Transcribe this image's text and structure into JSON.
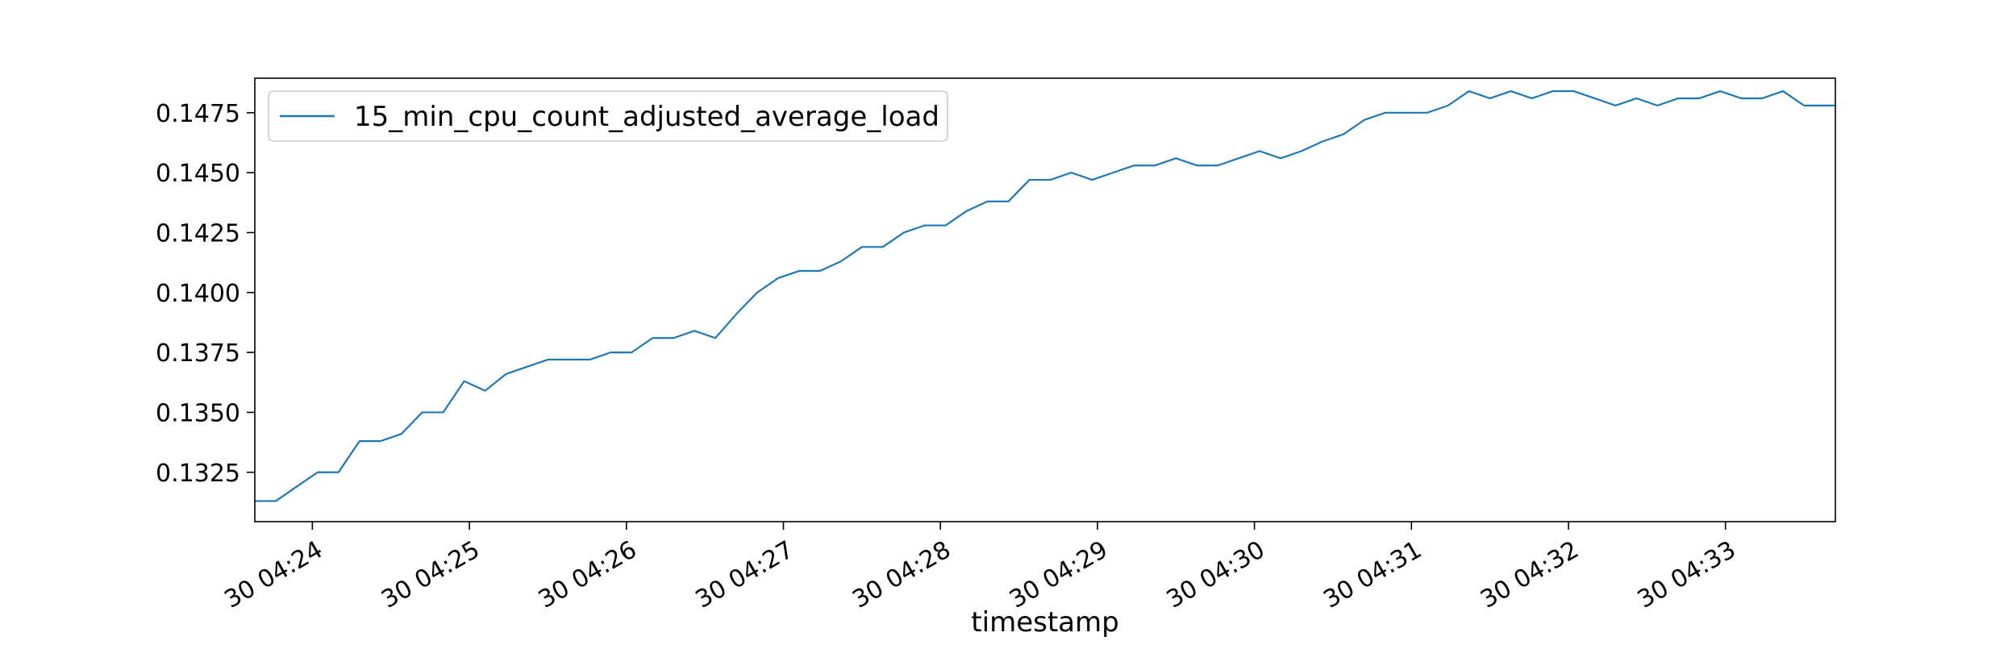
{
  "chart_data": {
    "type": "line",
    "title": "",
    "xlabel": "timestamp",
    "ylabel": "",
    "x_start": "30 04:23:38",
    "x_end": "30 04:33:42",
    "xlim": [
      "30 04:23:38",
      "30 04:33:42"
    ],
    "ylim": [
      0.13044,
      0.14894
    ],
    "y_ticks": [
      0.1325,
      0.135,
      0.1375,
      0.14,
      0.1425,
      0.145,
      0.1475
    ],
    "y_tick_labels": [
      "0.1325",
      "0.1350",
      "0.1375",
      "0.1400",
      "0.1425",
      "0.1450",
      "0.1475"
    ],
    "x_ticks": [
      "30 04:24",
      "30 04:25",
      "30 04:26",
      "30 04:27",
      "30 04:28",
      "30 04:29",
      "30 04:30",
      "30 04:31",
      "30 04:32",
      "30 04:33"
    ],
    "x_tick_labels": [
      "30 04:24",
      "30 04:25",
      "30 04:26",
      "30 04:27",
      "30 04:28",
      "30 04:29",
      "30 04:30",
      "30 04:31",
      "30 04:32",
      "30 04:33"
    ],
    "grid": false,
    "legend": {
      "placement": "upper-left",
      "entries": [
        "15_min_cpu_count_adjusted_average_load"
      ]
    },
    "series": [
      {
        "name": "15_min_cpu_count_adjusted_average_load",
        "color": "#1f77b4",
        "x": [
          "30 04:23:38",
          "30 04:23:46",
          "30 04:23:54",
          "30 04:24:02",
          "30 04:24:10",
          "30 04:24:18",
          "30 04:24:26",
          "30 04:24:34",
          "30 04:24:42",
          "30 04:24:50",
          "30 04:24:58",
          "30 04:25:06",
          "30 04:25:14",
          "30 04:25:22",
          "30 04:25:30",
          "30 04:25:38",
          "30 04:25:46",
          "30 04:25:54",
          "30 04:26:02",
          "30 04:26:10",
          "30 04:26:18",
          "30 04:26:26",
          "30 04:26:34",
          "30 04:26:42",
          "30 04:26:50",
          "30 04:26:58",
          "30 04:27:06",
          "30 04:27:14",
          "30 04:27:22",
          "30 04:27:30",
          "30 04:27:38",
          "30 04:27:46",
          "30 04:27:54",
          "30 04:28:02",
          "30 04:28:10",
          "30 04:28:18",
          "30 04:28:26",
          "30 04:28:34",
          "30 04:28:42",
          "30 04:28:50",
          "30 04:28:58",
          "30 04:29:06",
          "30 04:29:14",
          "30 04:29:22",
          "30 04:29:30",
          "30 04:29:38",
          "30 04:29:46",
          "30 04:29:54",
          "30 04:30:02",
          "30 04:30:10",
          "30 04:30:18",
          "30 04:30:26",
          "30 04:30:34",
          "30 04:30:42",
          "30 04:30:50",
          "30 04:30:58",
          "30 04:31:06",
          "30 04:31:14",
          "30 04:31:22",
          "30 04:31:30",
          "30 04:31:38",
          "30 04:31:46",
          "30 04:31:54",
          "30 04:32:02",
          "30 04:32:10",
          "30 04:32:18",
          "30 04:32:26",
          "30 04:32:34",
          "30 04:32:42",
          "30 04:32:50",
          "30 04:32:58",
          "30 04:33:06",
          "30 04:33:14",
          "30 04:33:22",
          "30 04:33:30",
          "30 04:33:38",
          "30 04:33:42"
        ],
        "y": [
          0.1313,
          0.1313,
          0.1319,
          0.1325,
          0.1325,
          0.1338,
          0.1338,
          0.1341,
          0.135,
          0.135,
          0.1363,
          0.1359,
          0.1366,
          0.1369,
          0.1372,
          0.1372,
          0.1372,
          0.1375,
          0.1375,
          0.1381,
          0.1381,
          0.1384,
          0.1381,
          0.1391,
          0.14,
          0.1406,
          0.1409,
          0.1409,
          0.1413,
          0.1419,
          0.1419,
          0.1425,
          0.1428,
          0.1428,
          0.1434,
          0.1438,
          0.1438,
          0.1447,
          0.1447,
          0.145,
          0.1447,
          0.145,
          0.1453,
          0.1453,
          0.1456,
          0.1453,
          0.1453,
          0.1456,
          0.1459,
          0.1456,
          0.1459,
          0.1463,
          0.1466,
          0.1472,
          0.1475,
          0.1475,
          0.1475,
          0.1478,
          0.1484,
          0.1481,
          0.1484,
          0.1481,
          0.1484,
          0.1484,
          0.1481,
          0.1478,
          0.1481,
          0.1478,
          0.1481,
          0.1481,
          0.1484,
          0.1481,
          0.1481,
          0.1484,
          0.1478,
          0.1478,
          0.1478
        ]
      }
    ]
  }
}
